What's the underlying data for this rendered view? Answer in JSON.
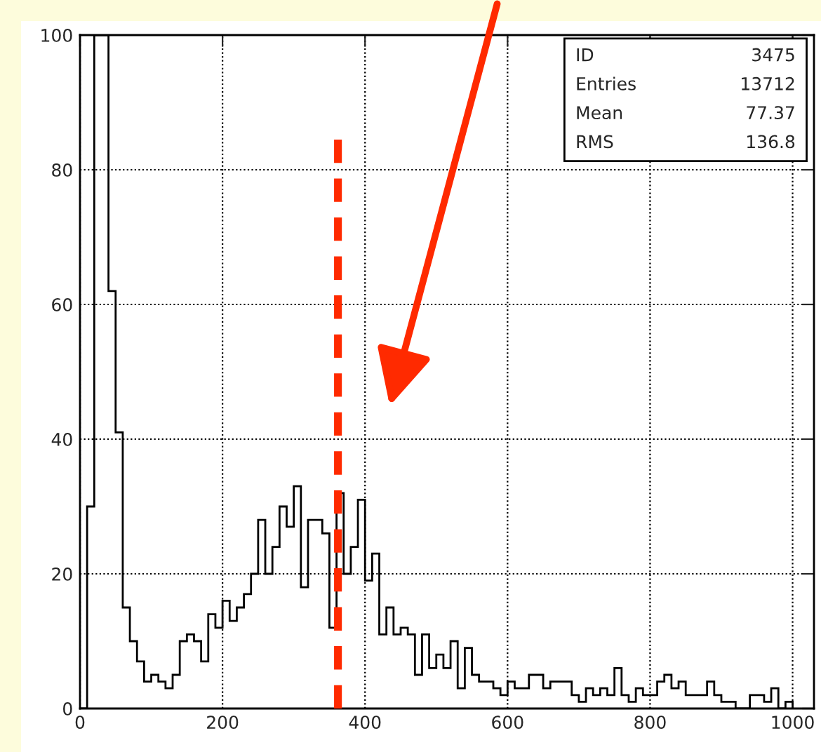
{
  "chart_data": {
    "type": "histogram",
    "bins": [
      0,
      10,
      20,
      30,
      40,
      50,
      60,
      70,
      80,
      90,
      100,
      110,
      120,
      130,
      140,
      150,
      160,
      170,
      180,
      190,
      200,
      210,
      220,
      230,
      240,
      250,
      260,
      270,
      280,
      290,
      300,
      310,
      320,
      330,
      340,
      350,
      360,
      370,
      380,
      390,
      400,
      410,
      420,
      430,
      440,
      450,
      460,
      470,
      480,
      490,
      500,
      510,
      520,
      530,
      540,
      550,
      560,
      570,
      580,
      590,
      600,
      610,
      620,
      630,
      640,
      650,
      660,
      670,
      680,
      690,
      700,
      710,
      720,
      730,
      740,
      750,
      760,
      770,
      780,
      790,
      800,
      810,
      820,
      830,
      840,
      850,
      860,
      870,
      880,
      890,
      900,
      910,
      920,
      930,
      940,
      950,
      960,
      970,
      980,
      990,
      1000
    ],
    "values": [
      0,
      30,
      100,
      100,
      62,
      41,
      15,
      10,
      7,
      4,
      5,
      4,
      3,
      5,
      10,
      11,
      10,
      7,
      14,
      12,
      16,
      13,
      15,
      17,
      20,
      28,
      20,
      24,
      30,
      27,
      33,
      18,
      28,
      28,
      26,
      12,
      32,
      20,
      24,
      31,
      19,
      23,
      11,
      15,
      11,
      12,
      11,
      5,
      11,
      6,
      8,
      6,
      10,
      3,
      9,
      5,
      4,
      4,
      3,
      2,
      4,
      3,
      3,
      5,
      5,
      3,
      4,
      4,
      4,
      2,
      1,
      3,
      2,
      3,
      2,
      6,
      2,
      1,
      3,
      2,
      2,
      4,
      5,
      3,
      4,
      2,
      2,
      2,
      4,
      2,
      1,
      1,
      0,
      0,
      2,
      2,
      1,
      3,
      0,
      1
    ],
    "color": "#000000",
    "xlim": [
      0,
      1030
    ],
    "ylim": [
      0,
      100
    ],
    "xticks": [
      0,
      200,
      400,
      600,
      800,
      1000
    ],
    "yticks": [
      0,
      20,
      40,
      60,
      80,
      100
    ],
    "grid": true,
    "ref_lines": [
      {
        "axis": "x",
        "value": 362,
        "label": null,
        "color": "#ff2a00",
        "line_style": "dashed"
      }
    ],
    "annotations": [
      "ID 3475",
      "Entries 13712",
      "Mean 77.37",
      "RMS 136.8"
    ]
  }
}
